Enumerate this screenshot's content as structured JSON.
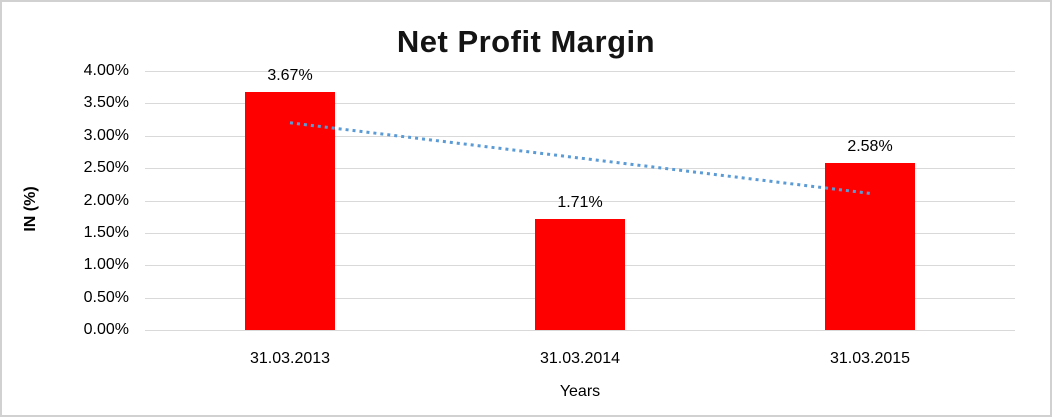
{
  "chart_data": {
    "type": "bar",
    "title": "Net Profit Margin",
    "xlabel": "Years",
    "ylabel": "IN (%)",
    "categories": [
      "31.03.2013",
      "31.03.2014",
      "31.03.2015"
    ],
    "values": [
      3.67,
      1.71,
      2.58
    ],
    "value_labels": [
      "3.67%",
      "1.71%",
      "2.58%"
    ],
    "ylim": [
      0,
      4
    ],
    "ytick_step": 0.5,
    "ytick_labels": [
      "0.00%",
      "0.50%",
      "1.00%",
      "1.50%",
      "2.00%",
      "2.50%",
      "3.00%",
      "3.50%",
      "4.00%"
    ],
    "grid": true,
    "legend_position": "none",
    "bar_color": "#ff0000",
    "gridline_color": "#d9d9d9",
    "trendline": {
      "type": "linear",
      "style": "dotted",
      "color": "#5b9bd5",
      "start_value": 3.2,
      "end_value": 2.11
    }
  }
}
